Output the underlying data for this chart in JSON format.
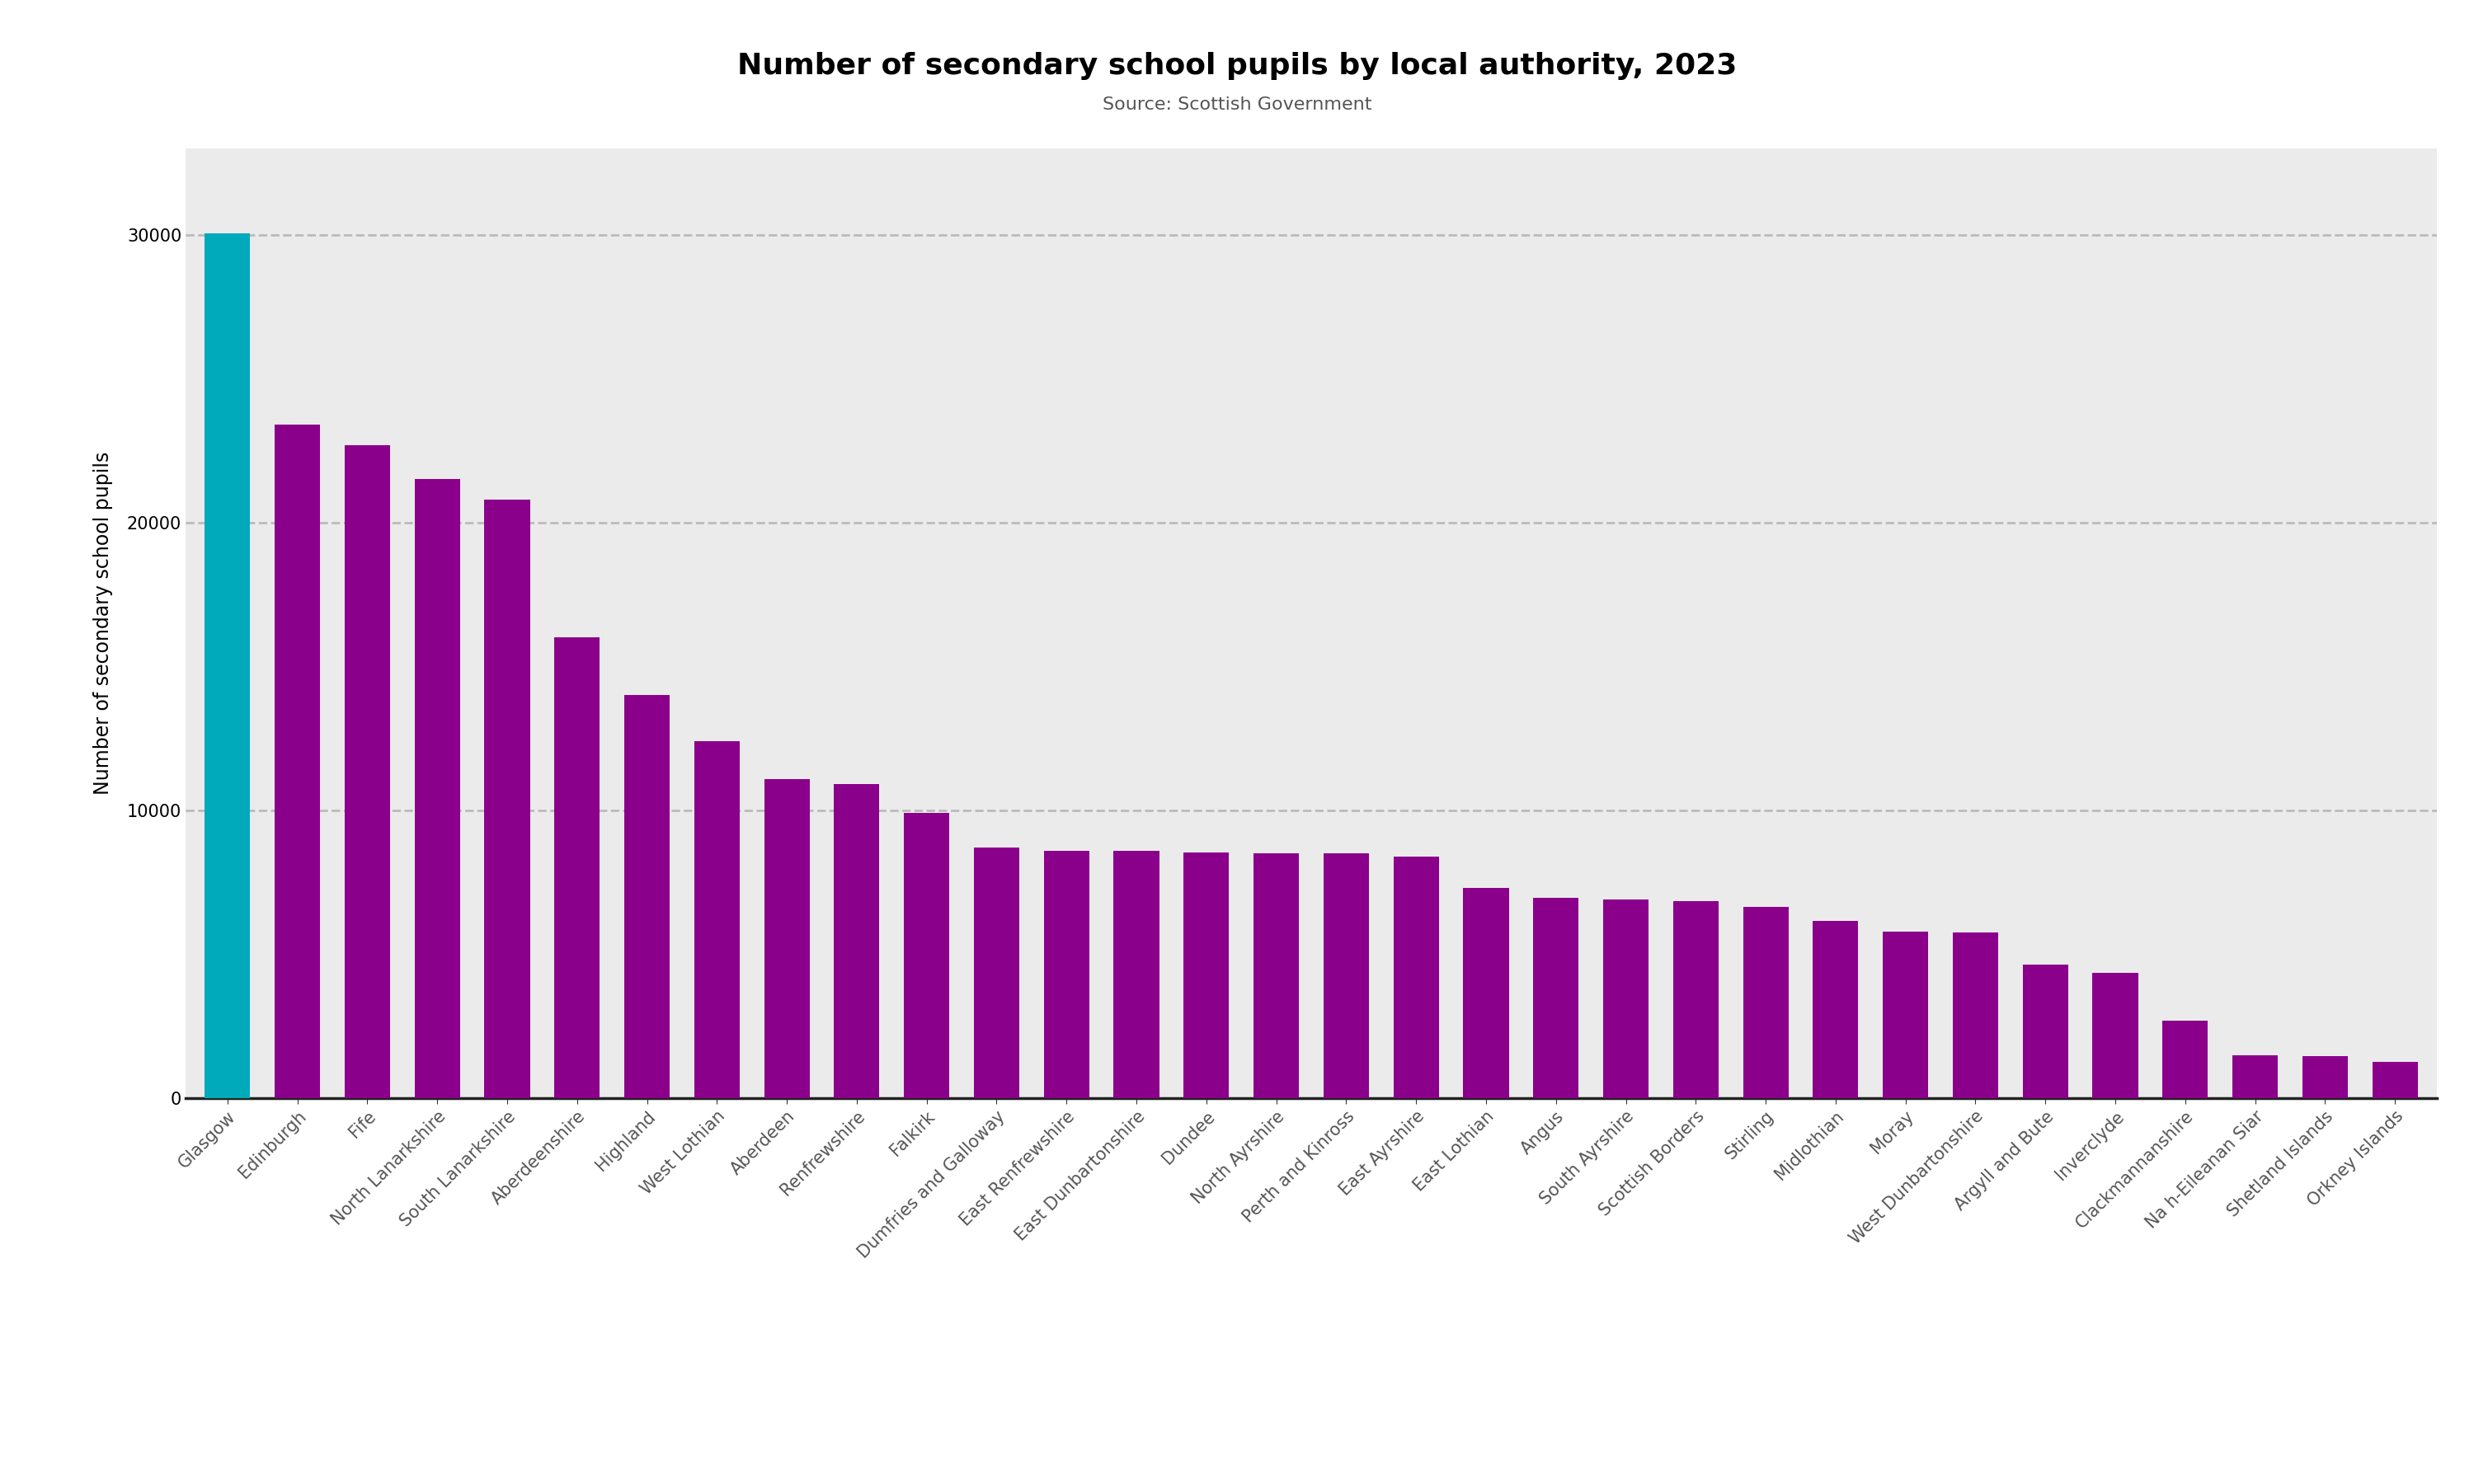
{
  "title": "Number of secondary school pupils by local authority, 2023",
  "subtitle": "Source: Scottish Government",
  "ylabel": "Number of secondary school pupils",
  "categories": [
    "Glasgow",
    "Edinburgh",
    "Fife",
    "North Lanarkshire",
    "South Lanarkshire",
    "Aberdeenshire",
    "Highland",
    "West Lothian",
    "Aberdeen",
    "Renfrewshire",
    "Falkirk",
    "Dumfries and Galloway",
    "East Renfrewshire",
    "East Dunbartonshire",
    "Dundee",
    "North Ayrshire",
    "Perth and Kinross",
    "East Ayrshire",
    "East Lothian",
    "Angus",
    "South Ayrshire",
    "Scottish Borders",
    "Stirling",
    "Midlothian",
    "Moray",
    "West Dunbartonshire",
    "Argyll and Bute",
    "Inverclyde",
    "Clackmannanshire",
    "Na h-Eileanan Siar",
    "Shetland Islands",
    "Orkney Islands"
  ],
  "values": [
    30050,
    23400,
    22700,
    21500,
    20800,
    16000,
    14000,
    12400,
    11100,
    10900,
    9900,
    8700,
    8600,
    8600,
    8550,
    8500,
    8500,
    8400,
    7300,
    6950,
    6900,
    6850,
    6650,
    6150,
    5800,
    5750,
    4650,
    4350,
    2700,
    1500,
    1450,
    1250
  ],
  "glasgow_color": "#00AABB",
  "bar_color": "#8B008B",
  "fig_bg": "#FFFFFF",
  "plot_bg": "#EBEBEB",
  "title_fontsize": 26,
  "subtitle_fontsize": 16,
  "ylabel_fontsize": 17,
  "tick_fontsize": 15,
  "xtick_color": "#555555",
  "ylim": [
    0,
    33000
  ],
  "yticks": [
    0,
    10000,
    20000,
    30000
  ],
  "grid_color": "#BBBBBB",
  "grid_linestyle": "--",
  "grid_linewidth": 2.0
}
